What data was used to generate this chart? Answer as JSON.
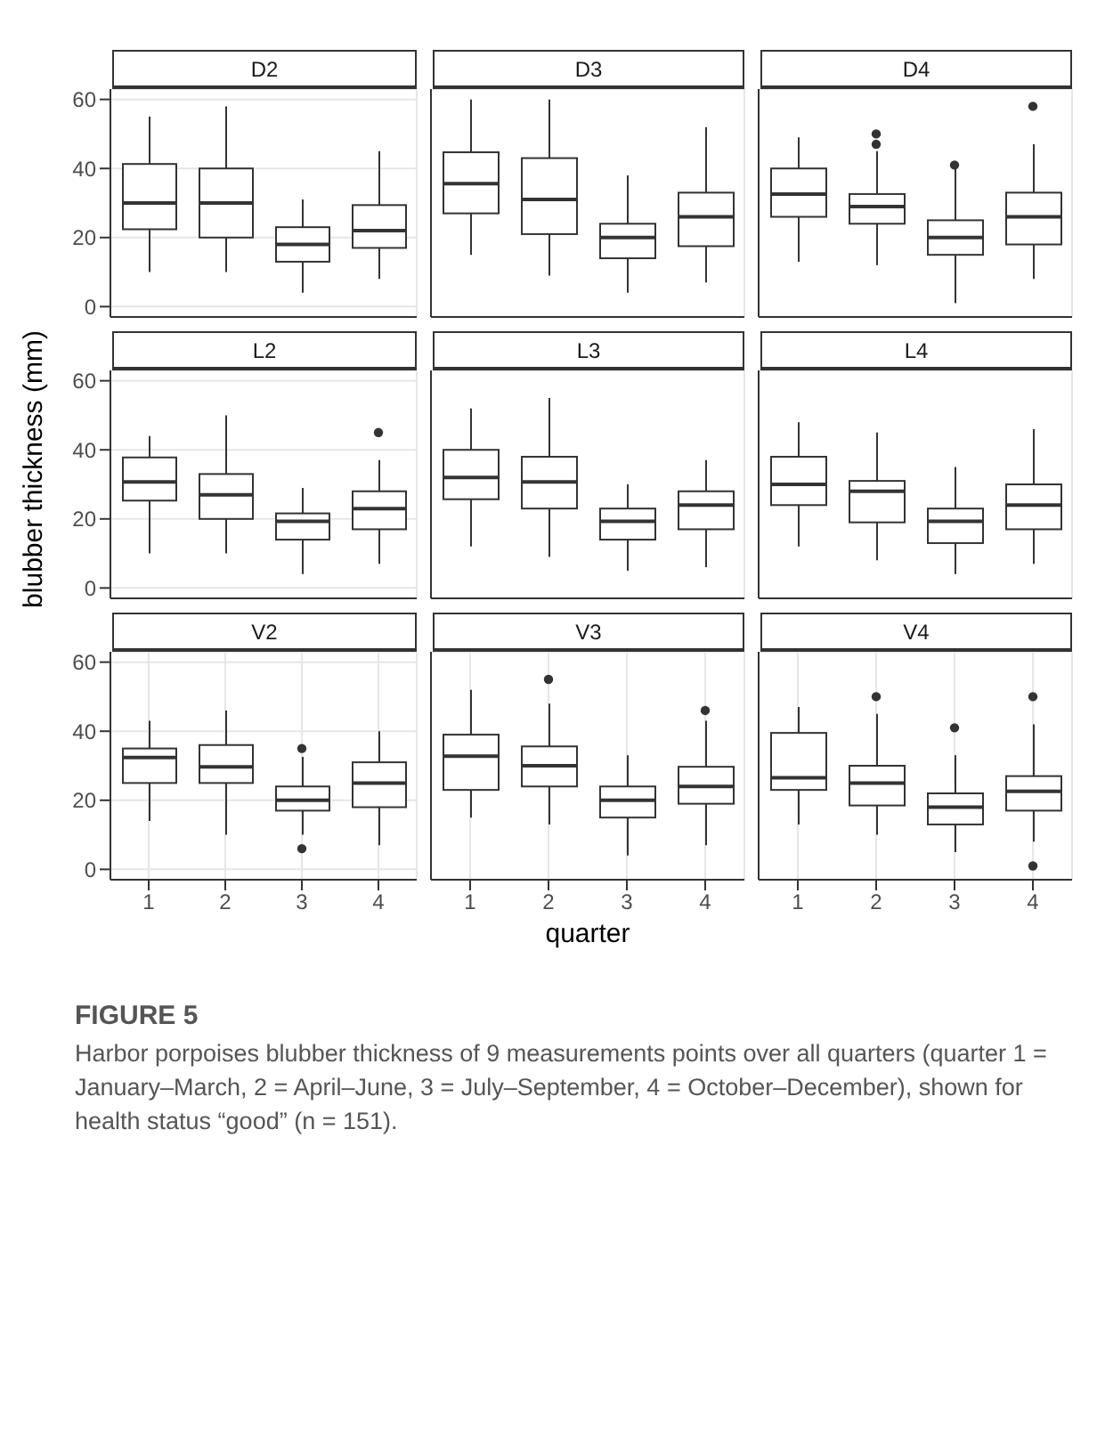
{
  "chart_data": [
    {
      "type": "box",
      "title": "D2",
      "categories": [
        "1",
        "2",
        "3",
        "4"
      ],
      "color": "#333333",
      "ylim": [
        -3,
        63
      ],
      "yticks": [
        0,
        20,
        40,
        60
      ],
      "grid": true,
      "tick_labels": "y",
      "marker": "circle",
      "boxes": [
        {
          "low": 10,
          "q1": 22.4,
          "median": 30,
          "q3": 41.3,
          "high": 55
        },
        {
          "low": 10,
          "q1": 20,
          "median": 30,
          "q3": 40,
          "high": 58
        },
        {
          "low": 4,
          "q1": 13,
          "median": 18,
          "q3": 23,
          "high": 31
        },
        {
          "low": 8,
          "q1": 17,
          "median": 22,
          "q3": 29.4,
          "high": 45
        }
      ]
    },
    {
      "type": "box",
      "title": "D3",
      "categories": [
        "1",
        "2",
        "3",
        "4"
      ],
      "color": "#333333",
      "ylim": [
        -3,
        63
      ],
      "yticks": [
        0,
        20,
        40,
        60
      ],
      "grid": true,
      "tick_labels": false,
      "marker": "circle",
      "boxes": [
        {
          "low": 15,
          "q1": 27,
          "median": 35.6,
          "q3": 44.7,
          "high": 60
        },
        {
          "low": 9,
          "q1": 21,
          "median": 31,
          "q3": 43,
          "high": 60
        },
        {
          "low": 4,
          "q1": 14,
          "median": 20,
          "q3": 24,
          "high": 38
        },
        {
          "low": 7,
          "q1": 17.5,
          "median": 26,
          "q3": 33,
          "high": 52
        }
      ]
    },
    {
      "type": "box",
      "title": "D4",
      "categories": [
        "1",
        "2",
        "3",
        "4"
      ],
      "color": "#333333",
      "ylim": [
        -3,
        63
      ],
      "yticks": [
        0,
        20,
        40,
        60
      ],
      "grid": true,
      "tick_labels": false,
      "marker": "circle",
      "boxes": [
        {
          "low": 13,
          "q1": 26,
          "median": 32.6,
          "q3": 40,
          "high": 49
        },
        {
          "low": 12,
          "q1": 24,
          "median": 29,
          "q3": 32.6,
          "high": 45,
          "outliers": [
            50,
            47
          ]
        },
        {
          "low": 1,
          "q1": 15,
          "median": 20,
          "q3": 25,
          "high": 40,
          "outliers": [
            41
          ]
        },
        {
          "low": 8,
          "q1": 18,
          "median": 26,
          "q3": 33,
          "high": 47,
          "outliers": [
            58
          ]
        }
      ]
    },
    {
      "type": "box",
      "title": "L2",
      "ylabel": "blubber thickness (mm)",
      "categories": [
        "1",
        "2",
        "3",
        "4"
      ],
      "color": "#333333",
      "ylim": [
        -3,
        63
      ],
      "yticks": [
        0,
        20,
        40,
        60
      ],
      "grid": true,
      "tick_labels": "y",
      "marker": "circle",
      "boxes": [
        {
          "low": 10,
          "q1": 25.3,
          "median": 30.7,
          "q3": 37.8,
          "high": 44
        },
        {
          "low": 10,
          "q1": 20,
          "median": 27,
          "q3": 33,
          "high": 50
        },
        {
          "low": 4,
          "q1": 14,
          "median": 19.3,
          "q3": 21.6,
          "high": 29
        },
        {
          "low": 7,
          "q1": 17,
          "median": 23,
          "q3": 28,
          "high": 37,
          "outliers": [
            45
          ]
        }
      ]
    },
    {
      "type": "box",
      "title": "L3",
      "categories": [
        "1",
        "2",
        "3",
        "4"
      ],
      "color": "#333333",
      "ylim": [
        -3,
        63
      ],
      "yticks": [
        0,
        20,
        40,
        60
      ],
      "grid": true,
      "tick_labels": false,
      "marker": "circle",
      "boxes": [
        {
          "low": 12,
          "q1": 25.7,
          "median": 32,
          "q3": 40,
          "high": 52
        },
        {
          "low": 9,
          "q1": 23,
          "median": 30.7,
          "q3": 38,
          "high": 55
        },
        {
          "low": 5,
          "q1": 14,
          "median": 19.3,
          "q3": 23,
          "high": 30
        },
        {
          "low": 6,
          "q1": 17,
          "median": 24,
          "q3": 28,
          "high": 37
        }
      ]
    },
    {
      "type": "box",
      "title": "L4",
      "categories": [
        "1",
        "2",
        "3",
        "4"
      ],
      "color": "#333333",
      "ylim": [
        -3,
        63
      ],
      "yticks": [
        0,
        20,
        40,
        60
      ],
      "grid": true,
      "tick_labels": false,
      "marker": "circle",
      "boxes": [
        {
          "low": 12,
          "q1": 24,
          "median": 30,
          "q3": 38,
          "high": 48
        },
        {
          "low": 8,
          "q1": 19,
          "median": 28,
          "q3": 31,
          "high": 45
        },
        {
          "low": 4,
          "q1": 13,
          "median": 19.3,
          "q3": 23,
          "high": 35
        },
        {
          "low": 7,
          "q1": 17,
          "median": 24,
          "q3": 30,
          "high": 46
        }
      ]
    },
    {
      "type": "box",
      "title": "V2",
      "categories": [
        "1",
        "2",
        "3",
        "4"
      ],
      "color": "#333333",
      "ylim": [
        -3,
        63
      ],
      "yticks": [
        0,
        20,
        40,
        60
      ],
      "grid": true,
      "marker": "circle",
      "boxes": [
        {
          "low": 14,
          "q1": 25,
          "median": 32.4,
          "q3": 35,
          "high": 43
        },
        {
          "low": 10,
          "q1": 25,
          "median": 29.7,
          "q3": 36,
          "high": 46
        },
        {
          "low": 10,
          "q1": 17,
          "median": 20,
          "q3": 24,
          "high": 32.6,
          "outliers": [
            35,
            6
          ]
        },
        {
          "low": 7,
          "q1": 18,
          "median": 25,
          "q3": 31,
          "high": 40
        }
      ]
    },
    {
      "type": "box",
      "title": "V3",
      "xlabel": "quarter",
      "categories": [
        "1",
        "2",
        "3",
        "4"
      ],
      "color": "#333333",
      "ylim": [
        -3,
        63
      ],
      "yticks": [
        0,
        20,
        40,
        60
      ],
      "grid": true,
      "tick_labels": "x",
      "marker": "circle",
      "boxes": [
        {
          "low": 15,
          "q1": 23,
          "median": 32.8,
          "q3": 39,
          "high": 52
        },
        {
          "low": 13,
          "q1": 24,
          "median": 30,
          "q3": 35.6,
          "high": 48,
          "outliers": [
            55
          ]
        },
        {
          "low": 4,
          "q1": 15,
          "median": 20,
          "q3": 24,
          "high": 33
        },
        {
          "low": 7,
          "q1": 19,
          "median": 24,
          "q3": 29.7,
          "high": 43,
          "outliers": [
            46
          ]
        }
      ]
    },
    {
      "type": "box",
      "title": "V4",
      "categories": [
        "1",
        "2",
        "3",
        "4"
      ],
      "color": "#333333",
      "ylim": [
        -3,
        63
      ],
      "yticks": [
        0,
        20,
        40,
        60
      ],
      "grid": true,
      "tick_labels": "x",
      "marker": "circle",
      "annotations": [
        "FIGURE 5",
        "Harbor porpoises blubber thickness of 9 measurements points over all quarters (quarter 1 = January–March, 2 = April–June, 3 = July–September, 4 = October–December), shown for health status “good” (n = 151)."
      ],
      "boxes": [
        {
          "low": 13,
          "q1": 23,
          "median": 26.5,
          "q3": 39.5,
          "high": 47
        },
        {
          "low": 10,
          "q1": 18.5,
          "median": 25,
          "q3": 30,
          "high": 45,
          "outliers": [
            50
          ]
        },
        {
          "low": 5,
          "q1": 13,
          "median": 18,
          "q3": 22,
          "high": 33,
          "outliers": [
            41
          ]
        },
        {
          "low": 8,
          "q1": 17,
          "median": 22.6,
          "q3": 27,
          "high": 42,
          "outliers": [
            50,
            1
          ]
        }
      ]
    }
  ]
}
